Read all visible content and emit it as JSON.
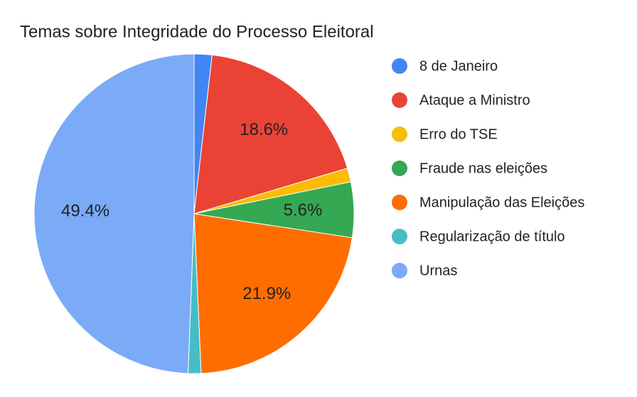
{
  "chart_data": {
    "type": "pie",
    "title": "Temas sobre Integridade do Processo Eleitoral",
    "categories": [
      "8 de Janeiro",
      "Ataque a Ministro",
      "Erro do TSE",
      "Fraude nas eleições",
      "Manipulação das Eleições",
      "Regularização de título",
      "Urnas"
    ],
    "values": [
      1.8,
      18.6,
      1.4,
      5.6,
      21.9,
      1.3,
      49.4
    ],
    "value_labels": [
      null,
      "18.6%",
      null,
      "5.6%",
      "21.9%",
      null,
      "49.4%"
    ],
    "colors": [
      "#4285f4",
      "#ea4335",
      "#fbbc04",
      "#34a853",
      "#ff6d01",
      "#46bdc6",
      "#7baaf7"
    ],
    "legend": "right"
  }
}
